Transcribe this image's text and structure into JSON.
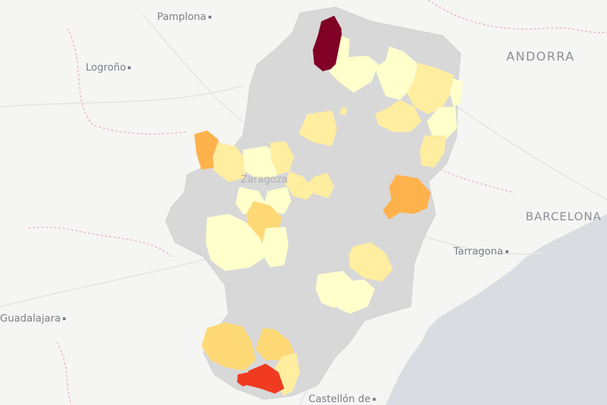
{
  "map": {
    "labels": {
      "pamplona": "Pamplona",
      "logrono": "Logroño",
      "andorra": "ANDORRA",
      "zaragoza": "Zaragoza",
      "barcelona": "BARCELONA",
      "tarragona": "Tarragona",
      "guadalajara": "Guadalajara",
      "castellon": "Castellón de"
    },
    "colors": {
      "background": "#f5f5f3",
      "sea": "#d9dde1",
      "region_base": "#d8d8d8",
      "scale_lowest": "#ffffcc",
      "scale_low": "#ffeda0",
      "scale_mid": "#fed976",
      "scale_midhigh": "#feb24c",
      "scale_high": "#f03b20",
      "scale_top": "#800026"
    }
  }
}
